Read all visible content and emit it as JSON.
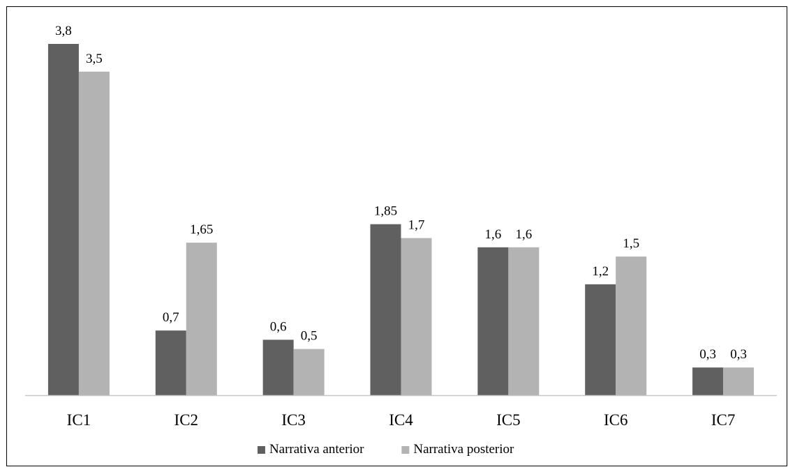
{
  "chart_data": {
    "type": "bar",
    "title": "",
    "xlabel": "",
    "ylabel": "",
    "categories": [
      "IC1",
      "IC2",
      "IC3",
      "IC4",
      "IC5",
      "IC6",
      "IC7"
    ],
    "series": [
      {
        "name": "Narrativa anterior",
        "values": [
          3.8,
          0.7,
          0.6,
          1.85,
          1.6,
          1.2,
          0.3
        ],
        "labels": [
          "3,8",
          "0,7",
          "0,6",
          "1,85",
          "1,6",
          "1,2",
          "0,3"
        ],
        "color": "#606060"
      },
      {
        "name": "Narrativa posterior",
        "values": [
          3.5,
          1.65,
          0.5,
          1.7,
          1.6,
          1.5,
          0.3
        ],
        "labels": [
          "3,5",
          "1,65",
          "0,5",
          "1,7",
          "1,6",
          "1,5",
          "0,3"
        ],
        "color": "#b3b3b3"
      }
    ],
    "ylim": [
      0,
      3.8
    ],
    "grid": false,
    "y_axis_visible": false,
    "legend_position": "bottom",
    "axis_color": "#c8c8c8"
  }
}
